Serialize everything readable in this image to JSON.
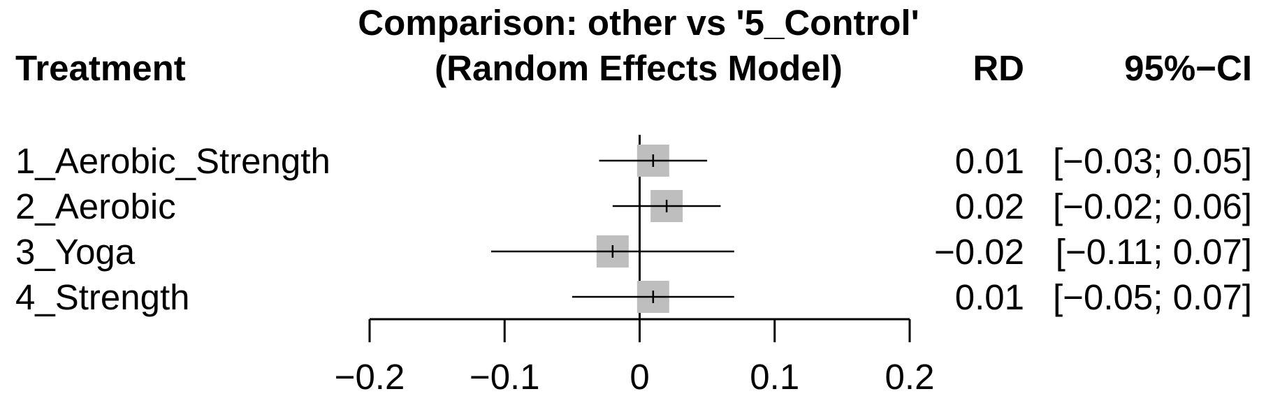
{
  "chart_data": {
    "type": "forest",
    "title_line1": "Comparison: other vs '5_Control'",
    "title_line2": "(Random Effects Model)",
    "header_treatment": "Treatment",
    "header_effect": "RD",
    "header_ci": "95%−CI",
    "rows": [
      {
        "treatment": "1_Aerobic_Strength",
        "estimate": 0.01,
        "lower": -0.03,
        "upper": 0.05,
        "rd_text": "0.01",
        "ci_text": "[−0.03; 0.05]"
      },
      {
        "treatment": "2_Aerobic",
        "estimate": 0.02,
        "lower": -0.02,
        "upper": 0.06,
        "rd_text": "0.02",
        "ci_text": "[−0.02; 0.06]"
      },
      {
        "treatment": "3_Yoga",
        "estimate": -0.02,
        "lower": -0.11,
        "upper": 0.07,
        "rd_text": "−0.02",
        "ci_text": "[−0.11; 0.07]"
      },
      {
        "treatment": "4_Strength",
        "estimate": 0.01,
        "lower": -0.05,
        "upper": 0.07,
        "rd_text": "0.01",
        "ci_text": "[−0.05; 0.07]"
      }
    ],
    "xlim": [
      -0.2,
      0.2
    ],
    "x_ticks": [
      -0.2,
      -0.1,
      0,
      0.1,
      0.2
    ],
    "x_tick_labels": [
      "−0.2",
      "−0.1",
      "0",
      "0.1",
      "0.2"
    ],
    "reference_line": 0,
    "marker_color": "#bebebe",
    "line_color": "#000000"
  }
}
